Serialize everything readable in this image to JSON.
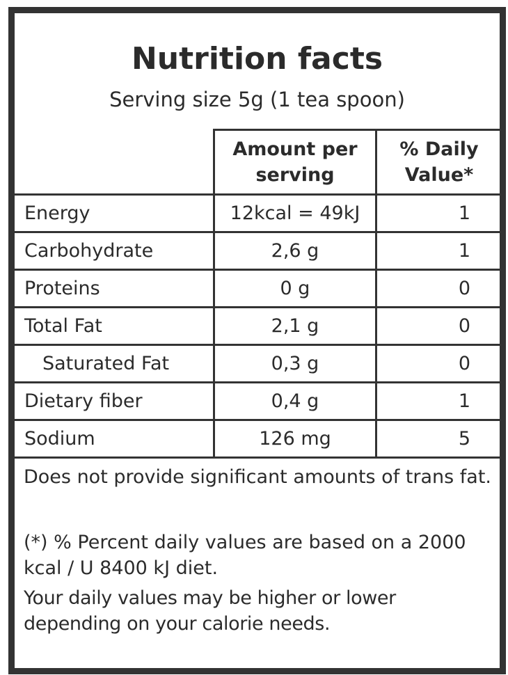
{
  "title": "Nutrition facts",
  "serving": "Serving size 5g (1 tea spoon)",
  "columns": {
    "amount": "Amount per serving",
    "daily": "% Daily Value*"
  },
  "rows": [
    {
      "name": "Energy",
      "amount": "12kcal = 49kJ",
      "daily": "1"
    },
    {
      "name": "Carbohydrate",
      "amount": "2,6 g",
      "daily": "1"
    },
    {
      "name": "Proteins",
      "amount": "0 g",
      "daily": "0"
    },
    {
      "name": "Total Fat",
      "amount": "2,1 g",
      "daily": "0"
    },
    {
      "name": "Saturated Fat",
      "amount": "0,3 g",
      "daily": "0"
    },
    {
      "name": "Dietary fiber",
      "amount": "0,4 g",
      "daily": "1"
    },
    {
      "name": "Sodium",
      "amount": "126 mg",
      "daily": "5"
    }
  ],
  "notes": {
    "trans_fat": "Does not provide significant amounts of trans fat.",
    "percent": "(*) % Percent daily values are based on a 2000 kcal / U 8400 kJ diet.",
    "variation": "Your daily values may be higher or lower depending on your calorie needs."
  }
}
